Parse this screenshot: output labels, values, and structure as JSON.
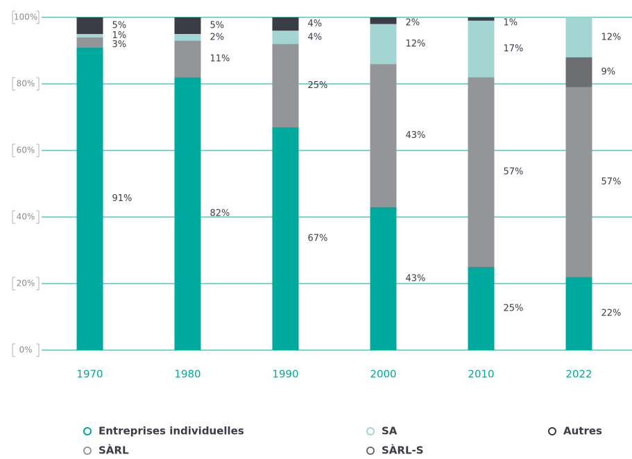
{
  "chart_data": {
    "type": "stacked_bar",
    "categories": [
      "1970",
      "1980",
      "1990",
      "2000",
      "2010",
      "2022"
    ],
    "series": [
      {
        "name": "Entreprises individuelles",
        "color": "#00a99d",
        "values": [
          91,
          82,
          67,
          43,
          25,
          22
        ],
        "value_labels": [
          "91%",
          "82%",
          "67%",
          "43%",
          "25%",
          "22%"
        ]
      },
      {
        "name": "SÀRL",
        "color": "#939598",
        "values": [
          3,
          11,
          25,
          43,
          57,
          57
        ],
        "value_labels": [
          "3%",
          "11%",
          "25%",
          "43%",
          "57%",
          "57%"
        ]
      },
      {
        "name": "SÀRL-S",
        "color": "#6d6e71",
        "values": [
          null,
          null,
          null,
          null,
          null,
          9
        ],
        "value_labels": [
          null,
          null,
          null,
          null,
          null,
          "9%"
        ]
      },
      {
        "name": "SA",
        "color": "#a3d5d2",
        "values": [
          1,
          2,
          4,
          12,
          17,
          12
        ],
        "value_labels": [
          "1%",
          "2%",
          "4%",
          "12%",
          "17%",
          "12%"
        ]
      },
      {
        "name": "Autres",
        "color": "#3a3d45",
        "values": [
          5,
          5,
          4,
          2,
          1,
          null
        ],
        "value_labels": [
          "5%",
          "5%",
          "4%",
          "2%",
          "1%",
          null
        ]
      }
    ],
    "ylim": [
      0,
      100
    ],
    "yticks": [
      {
        "value": 0,
        "label": "0%"
      },
      {
        "value": 20,
        "label": "20%"
      },
      {
        "value": 40,
        "label": "40%"
      },
      {
        "value": 60,
        "label": "60%"
      },
      {
        "value": 80,
        "label": "80%"
      },
      {
        "value": 100,
        "label": "100%"
      }
    ],
    "grid": true,
    "grid_color": "#00a99d",
    "legend": "bottom"
  }
}
